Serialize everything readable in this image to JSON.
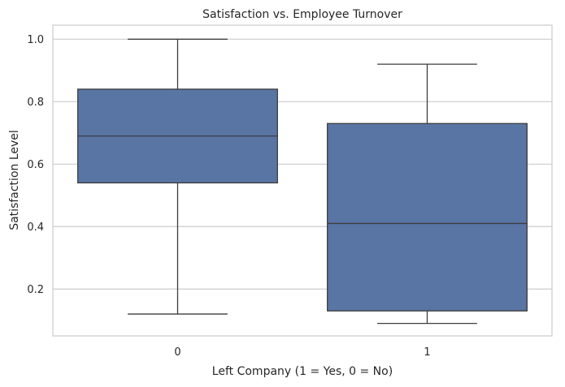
{
  "chart_data": {
    "type": "box",
    "title": "Satisfaction vs. Employee Turnover",
    "xlabel": "Left Company (1 = Yes, 0 = No)",
    "ylabel": "Satisfaction Level",
    "categories": [
      "0",
      "1"
    ],
    "boxes": [
      {
        "category": "0",
        "whisker_low": 0.12,
        "q1": 0.54,
        "median": 0.69,
        "q3": 0.84,
        "whisker_high": 1.0
      },
      {
        "category": "1",
        "whisker_low": 0.09,
        "q1": 0.13,
        "median": 0.41,
        "q3": 0.73,
        "whisker_high": 0.92
      }
    ],
    "ylim": [
      0.05,
      1.045
    ],
    "yticks": [
      0.2,
      0.4,
      0.6,
      0.8,
      1.0
    ],
    "ytick_labels": [
      "0.2",
      "0.4",
      "0.6",
      "0.8",
      "1.0"
    ],
    "grid": true,
    "box_color": "#5975a4",
    "line_color": "#3d3d3d",
    "grid_color": "#cccccc"
  }
}
